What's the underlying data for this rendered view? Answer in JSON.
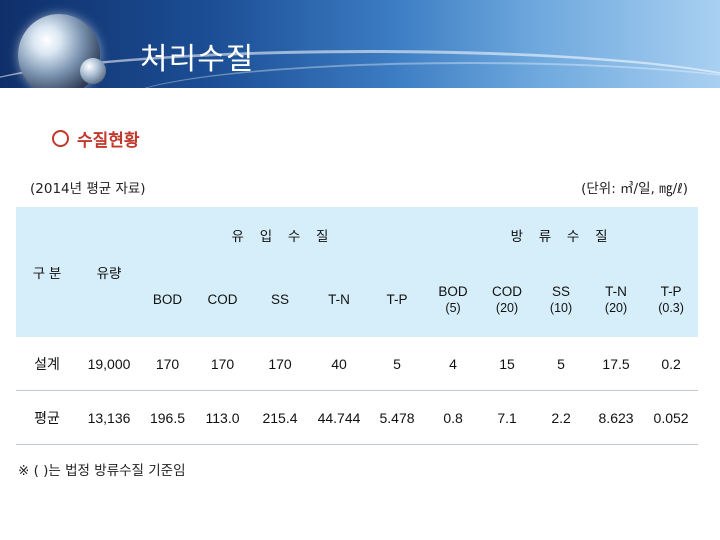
{
  "header": {
    "title": "처리수질"
  },
  "section": {
    "heading": "수질현황"
  },
  "notes": {
    "year": "(2014년 평균 자료)",
    "unit": "(단위: ㎥/일, ㎎/ℓ)"
  },
  "table": {
    "col_category": "구 분",
    "col_flow": "유량",
    "group_influent": "유 입 수 질",
    "group_effluent": "방 류 수 질",
    "influent_cols": [
      "BOD",
      "COD",
      "SS",
      "T-N",
      "T-P"
    ],
    "effluent_cols": [
      {
        "name": "BOD",
        "limit": "(5)"
      },
      {
        "name": "COD",
        "limit": "(20)"
      },
      {
        "name": "SS",
        "limit": "(10)"
      },
      {
        "name": "T-N",
        "limit": "(20)"
      },
      {
        "name": "T-P",
        "limit": "(0.3)"
      }
    ],
    "rows": [
      {
        "label": "설계",
        "values": [
          "19,000",
          "170",
          "170",
          "170",
          "40",
          "5",
          "4",
          "15",
          "5",
          "17.5",
          "0.2"
        ]
      },
      {
        "label": "평균",
        "values": [
          "13,136",
          "196.5",
          "113.0",
          "215.4",
          "44.744",
          "5.478",
          "0.8",
          "7.1",
          "2.2",
          "8.623",
          "0.052"
        ]
      }
    ]
  },
  "footnote": "※ ( )는 법정 방류수질 기준임",
  "colors": {
    "banner": "#1c4f96",
    "heading": "#c0392b",
    "header_fill": "#d6eef9"
  }
}
